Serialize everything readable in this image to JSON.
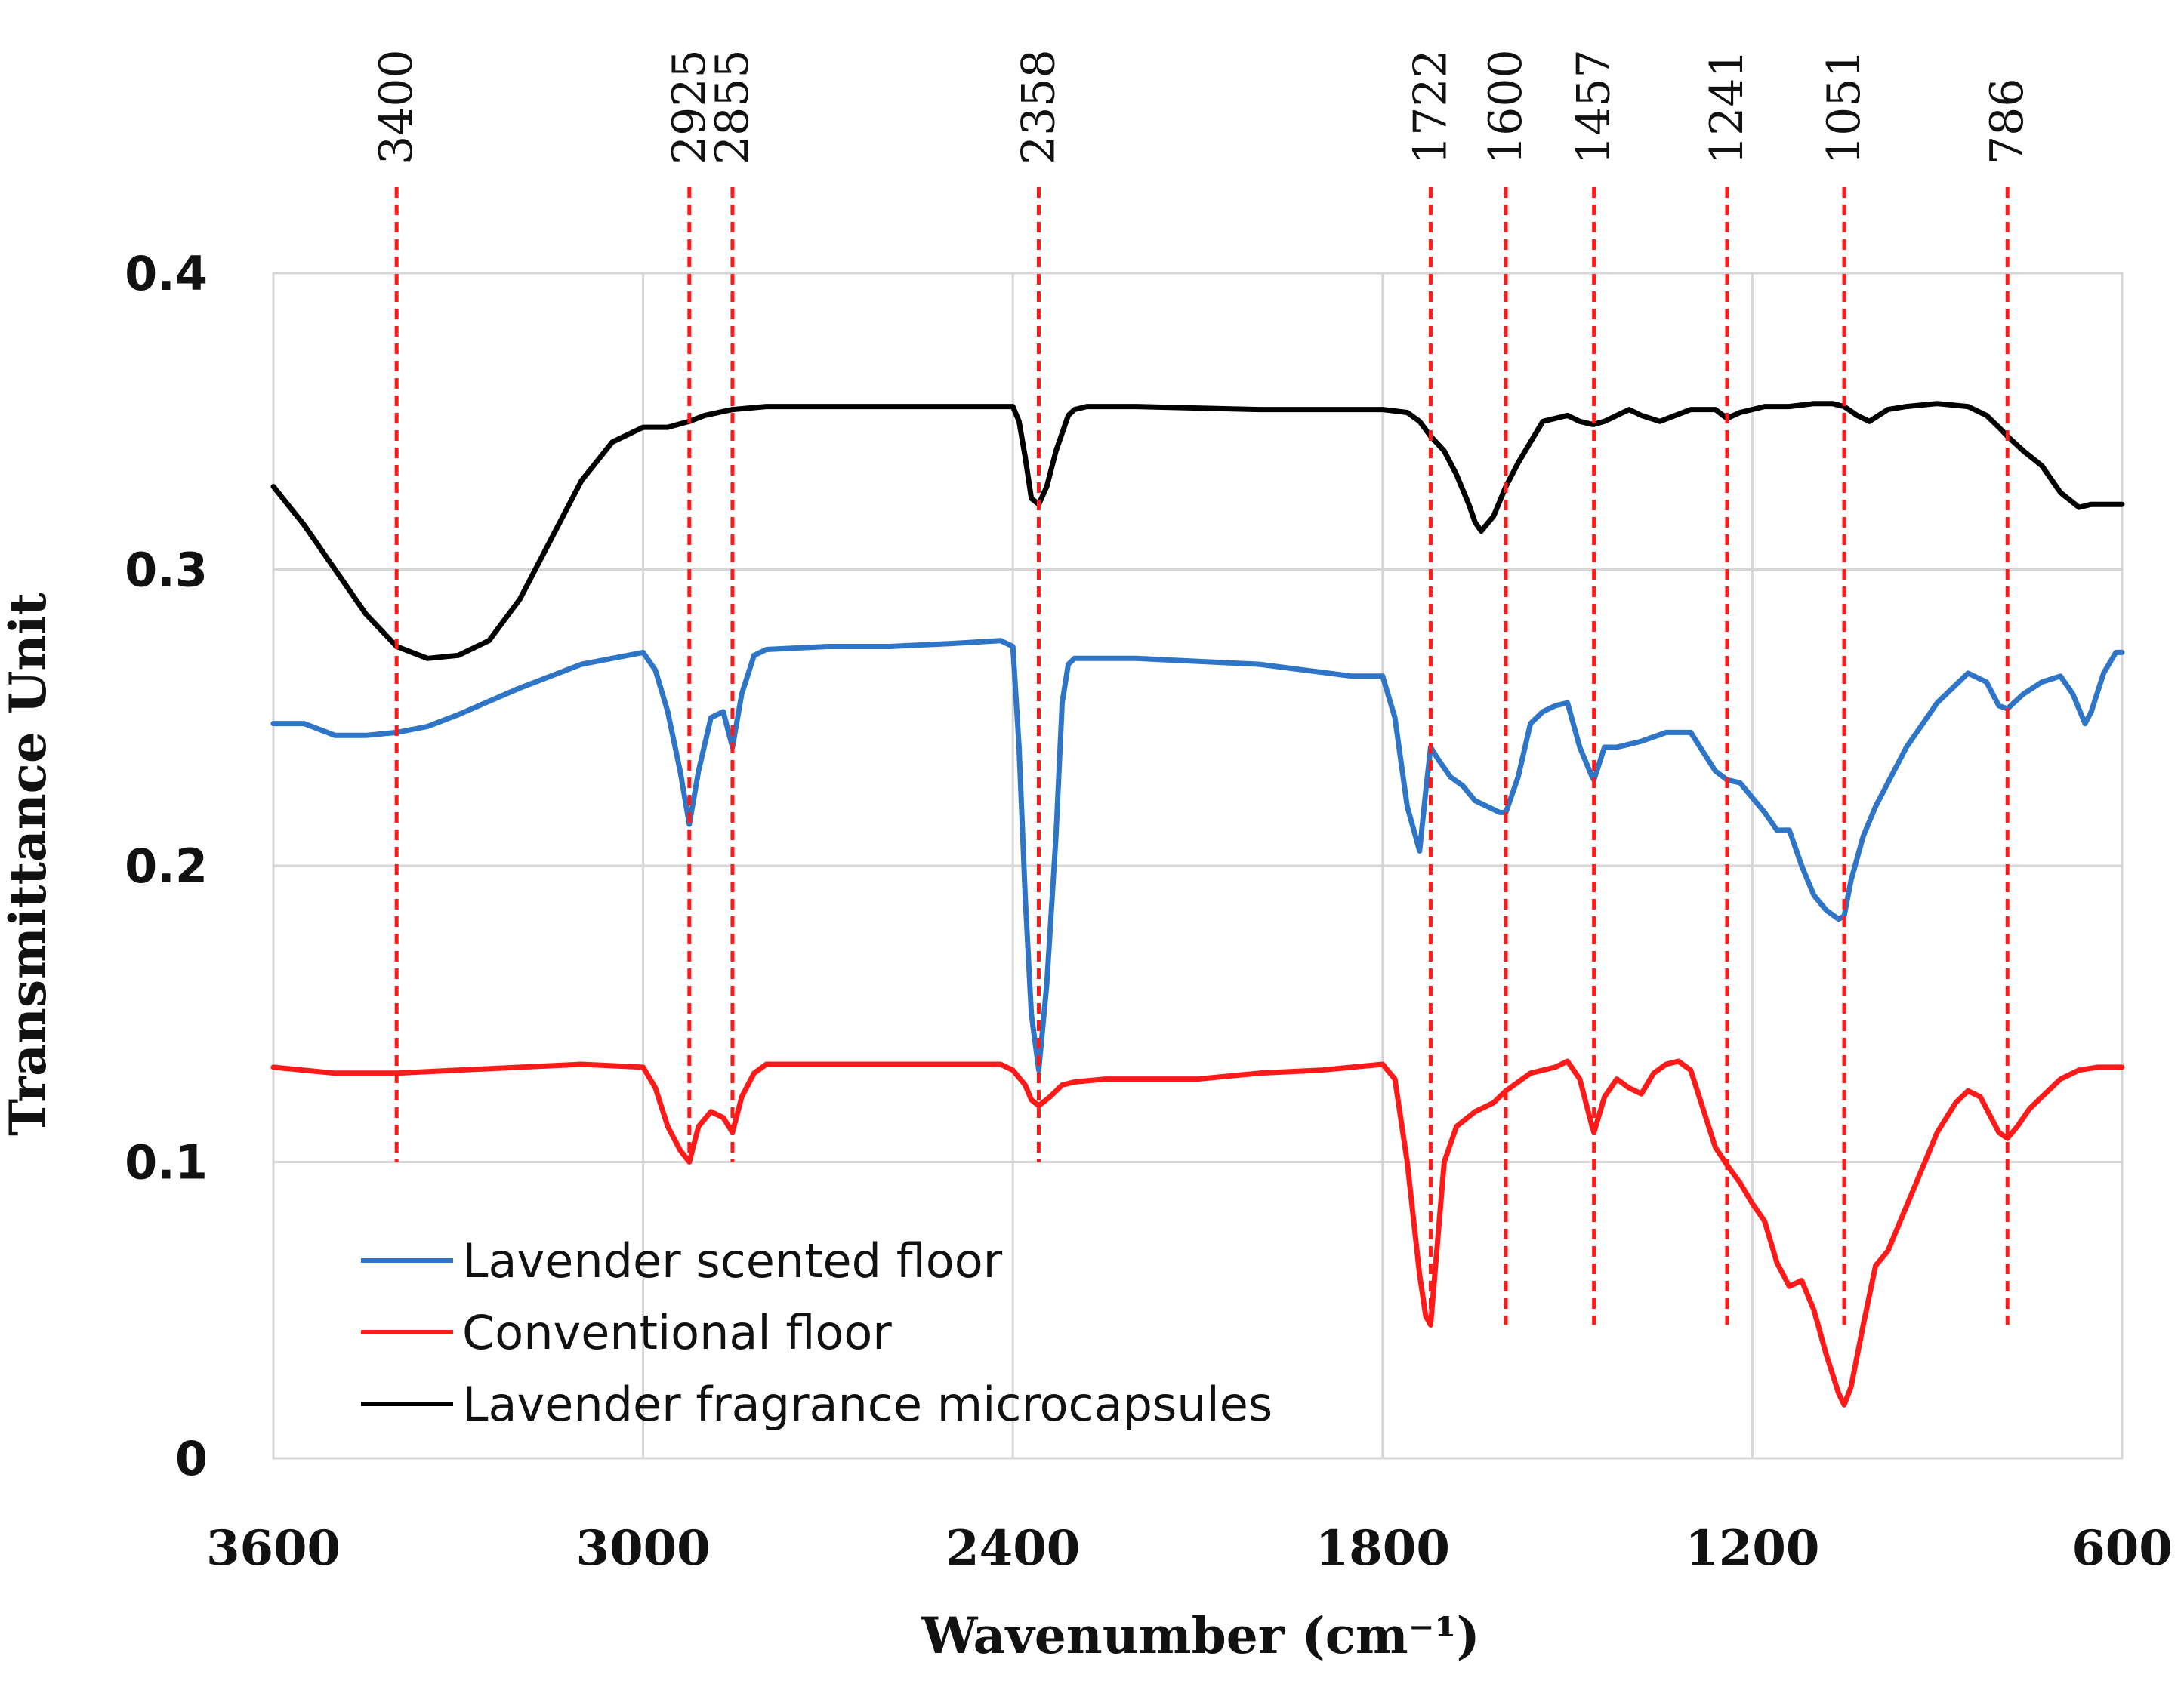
{
  "chart_data": {
    "type": "line",
    "title": "",
    "xlabel": "Wavenumber (cm⁻¹)",
    "ylabel": "Transmittance Unit",
    "xlim": [
      3600,
      600
    ],
    "ylim": [
      0,
      0.4
    ],
    "grid": true,
    "x_ticks": [
      3600,
      3000,
      2400,
      1800,
      1200,
      600
    ],
    "x_tick_labels": [
      "3600",
      "3000",
      "2400",
      "1800",
      "1200",
      "600"
    ],
    "y_ticks": [
      0,
      0.1,
      0.2,
      0.3,
      0.4
    ],
    "y_tick_labels": [
      "0",
      "0.1",
      "0.2",
      "0.3",
      "0.4"
    ],
    "peak_markers": [
      {
        "x": 3400,
        "label": "3400",
        "y_bottom": 0.1
      },
      {
        "x": 2925,
        "label": "2925",
        "y_bottom": 0.1
      },
      {
        "x": 2855,
        "label": "2855",
        "y_bottom": 0.1
      },
      {
        "x": 2358,
        "label": "2358",
        "y_bottom": 0.1
      },
      {
        "x": 1722,
        "label": "1722",
        "y_bottom": 0.045
      },
      {
        "x": 1600,
        "label": "1600",
        "y_bottom": 0.045
      },
      {
        "x": 1457,
        "label": "1457",
        "y_bottom": 0.045
      },
      {
        "x": 1241,
        "label": "1241",
        "y_bottom": 0.045
      },
      {
        "x": 1051,
        "label": "1051",
        "y_bottom": 0.045
      },
      {
        "x": 786,
        "label": "786",
        "y_bottom": 0.045
      }
    ],
    "legend_position": "bottom-left",
    "series": [
      {
        "name": "Lavender scented floor",
        "color": "#2E75C8",
        "x": [
          3600,
          3550,
          3500,
          3450,
          3400,
          3350,
          3300,
          3200,
          3100,
          3000,
          2980,
          2960,
          2940,
          2925,
          2910,
          2890,
          2870,
          2855,
          2840,
          2820,
          2800,
          2700,
          2600,
          2500,
          2420,
          2400,
          2390,
          2380,
          2370,
          2358,
          2345,
          2330,
          2320,
          2310,
          2300,
          2280,
          2200,
          2000,
          1850,
          1800,
          1780,
          1760,
          1740,
          1730,
          1722,
          1710,
          1690,
          1670,
          1650,
          1630,
          1610,
          1600,
          1580,
          1560,
          1540,
          1520,
          1500,
          1480,
          1460,
          1457,
          1440,
          1420,
          1380,
          1340,
          1300,
          1260,
          1241,
          1220,
          1200,
          1180,
          1160,
          1140,
          1120,
          1100,
          1080,
          1060,
          1051,
          1040,
          1020,
          1000,
          980,
          950,
          900,
          850,
          820,
          800,
          786,
          760,
          730,
          700,
          680,
          660,
          650,
          630,
          610,
          600
        ],
        "y": [
          0.248,
          0.248,
          0.244,
          0.244,
          0.245,
          0.247,
          0.251,
          0.26,
          0.268,
          0.272,
          0.266,
          0.252,
          0.232,
          0.214,
          0.232,
          0.25,
          0.252,
          0.24,
          0.258,
          0.271,
          0.273,
          0.274,
          0.274,
          0.275,
          0.276,
          0.274,
          0.24,
          0.19,
          0.15,
          0.131,
          0.16,
          0.21,
          0.255,
          0.268,
          0.27,
          0.27,
          0.27,
          0.268,
          0.264,
          0.264,
          0.25,
          0.22,
          0.205,
          0.225,
          0.24,
          0.236,
          0.23,
          0.227,
          0.222,
          0.22,
          0.218,
          0.218,
          0.23,
          0.248,
          0.252,
          0.254,
          0.255,
          0.24,
          0.23,
          0.229,
          0.24,
          0.24,
          0.242,
          0.245,
          0.245,
          0.232,
          0.229,
          0.228,
          0.223,
          0.218,
          0.212,
          0.212,
          0.2,
          0.19,
          0.185,
          0.182,
          0.183,
          0.195,
          0.21,
          0.22,
          0.228,
          0.24,
          0.255,
          0.265,
          0.262,
          0.254,
          0.253,
          0.258,
          0.262,
          0.264,
          0.258,
          0.248,
          0.252,
          0.265,
          0.272,
          0.272
        ]
      },
      {
        "name": "Conventional floor",
        "color": "#FF1A1A",
        "x": [
          3600,
          3500,
          3400,
          3300,
          3200,
          3100,
          3000,
          2980,
          2960,
          2940,
          2925,
          2910,
          2890,
          2870,
          2855,
          2840,
          2820,
          2800,
          2700,
          2600,
          2500,
          2420,
          2400,
          2380,
          2370,
          2358,
          2340,
          2320,
          2300,
          2250,
          2200,
          2100,
          2000,
          1900,
          1800,
          1780,
          1760,
          1740,
          1730,
          1722,
          1710,
          1700,
          1680,
          1650,
          1620,
          1600,
          1560,
          1520,
          1500,
          1480,
          1460,
          1457,
          1440,
          1420,
          1400,
          1380,
          1360,
          1340,
          1320,
          1300,
          1280,
          1260,
          1241,
          1220,
          1200,
          1180,
          1160,
          1140,
          1120,
          1100,
          1080,
          1060,
          1051,
          1040,
          1020,
          1000,
          980,
          950,
          900,
          870,
          850,
          830,
          800,
          786,
          770,
          750,
          720,
          700,
          670,
          640,
          620,
          600
        ],
        "y": [
          0.132,
          0.13,
          0.13,
          0.131,
          0.132,
          0.133,
          0.132,
          0.125,
          0.112,
          0.104,
          0.1,
          0.112,
          0.117,
          0.115,
          0.11,
          0.122,
          0.13,
          0.133,
          0.133,
          0.133,
          0.133,
          0.133,
          0.131,
          0.126,
          0.121,
          0.119,
          0.122,
          0.126,
          0.127,
          0.128,
          0.128,
          0.128,
          0.13,
          0.131,
          0.133,
          0.128,
          0.1,
          0.062,
          0.048,
          0.045,
          0.075,
          0.1,
          0.112,
          0.117,
          0.12,
          0.124,
          0.13,
          0.132,
          0.134,
          0.128,
          0.112,
          0.11,
          0.122,
          0.128,
          0.125,
          0.123,
          0.13,
          0.133,
          0.134,
          0.131,
          0.118,
          0.105,
          0.099,
          0.093,
          0.086,
          0.08,
          0.066,
          0.058,
          0.06,
          0.05,
          0.035,
          0.022,
          0.018,
          0.024,
          0.045,
          0.065,
          0.07,
          0.085,
          0.11,
          0.12,
          0.124,
          0.122,
          0.11,
          0.108,
          0.112,
          0.118,
          0.124,
          0.128,
          0.131,
          0.132,
          0.132,
          0.132
        ]
      },
      {
        "name": "Lavender fragrance microcapsules",
        "color": "#000000",
        "x": [
          3600,
          3550,
          3500,
          3450,
          3400,
          3350,
          3300,
          3250,
          3200,
          3150,
          3100,
          3050,
          3000,
          2960,
          2925,
          2900,
          2855,
          2800,
          2700,
          2600,
          2500,
          2420,
          2400,
          2390,
          2380,
          2370,
          2358,
          2345,
          2330,
          2310,
          2300,
          2280,
          2200,
          2000,
          1850,
          1800,
          1760,
          1740,
          1722,
          1700,
          1680,
          1660,
          1650,
          1640,
          1620,
          1600,
          1580,
          1540,
          1500,
          1480,
          1460,
          1457,
          1440,
          1400,
          1380,
          1350,
          1300,
          1260,
          1241,
          1220,
          1180,
          1140,
          1100,
          1070,
          1051,
          1030,
          1010,
          980,
          950,
          900,
          850,
          820,
          800,
          786,
          760,
          730,
          700,
          670,
          650,
          620,
          600
        ],
        "y": [
          0.328,
          0.315,
          0.3,
          0.285,
          0.274,
          0.27,
          0.271,
          0.276,
          0.29,
          0.31,
          0.33,
          0.343,
          0.348,
          0.348,
          0.35,
          0.352,
          0.354,
          0.355,
          0.355,
          0.355,
          0.355,
          0.355,
          0.355,
          0.35,
          0.338,
          0.324,
          0.322,
          0.328,
          0.34,
          0.352,
          0.354,
          0.355,
          0.355,
          0.354,
          0.354,
          0.354,
          0.353,
          0.35,
          0.345,
          0.34,
          0.332,
          0.322,
          0.316,
          0.313,
          0.318,
          0.328,
          0.336,
          0.35,
          0.352,
          0.35,
          0.349,
          0.349,
          0.35,
          0.354,
          0.352,
          0.35,
          0.354,
          0.354,
          0.351,
          0.353,
          0.355,
          0.355,
          0.356,
          0.356,
          0.355,
          0.352,
          0.35,
          0.354,
          0.355,
          0.356,
          0.355,
          0.352,
          0.348,
          0.345,
          0.34,
          0.335,
          0.326,
          0.321,
          0.322,
          0.322,
          0.322
        ]
      }
    ]
  }
}
